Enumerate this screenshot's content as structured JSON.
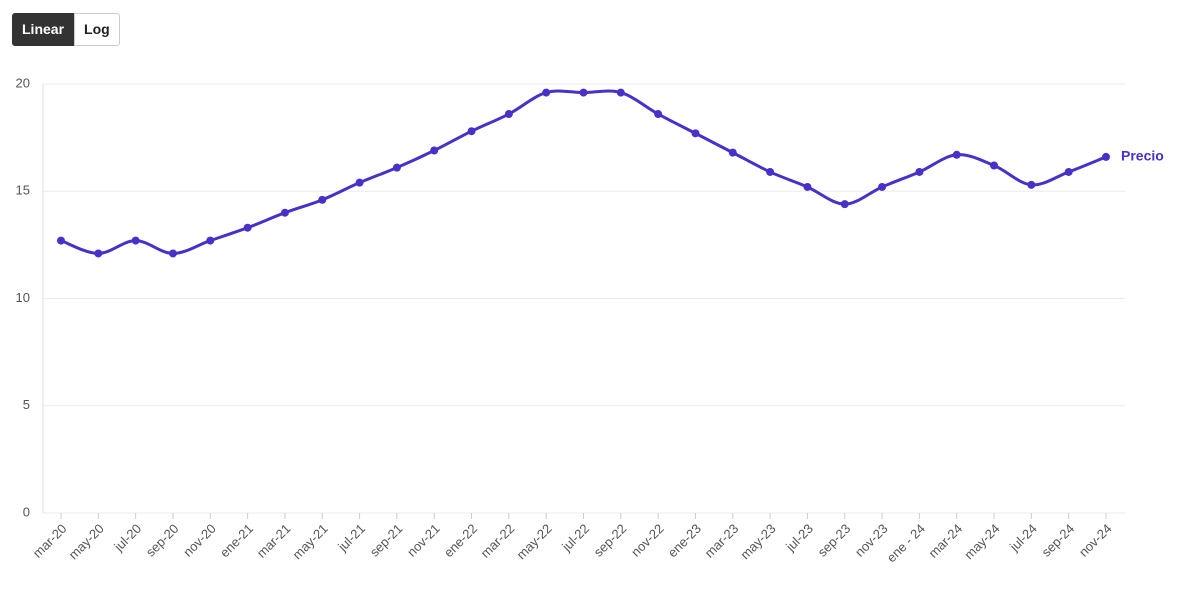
{
  "controls": {
    "buttons": [
      "Linear",
      "Log"
    ]
  },
  "chart_data": {
    "type": "line",
    "categories": [
      "mar-20",
      "may-20",
      "jul-20",
      "sep-20",
      "nov-20",
      "ene-21",
      "mar-21",
      "may-21",
      "jul-21",
      "sep-21",
      "nov-21",
      "ene-22",
      "mar-22",
      "may-22",
      "jul-22",
      "sep-22",
      "nov-22",
      "ene-23",
      "mar-23",
      "may-23",
      "jul-23",
      "sep-23",
      "nov-23",
      "ene - 24",
      "mar-24",
      "may-24",
      "jul-24",
      "sep-24",
      "nov-24"
    ],
    "series": [
      {
        "name": "Precio",
        "color": "#4a2fc8",
        "values": [
          12.7,
          12.1,
          12.7,
          12.1,
          12.7,
          13.3,
          14.0,
          14.6,
          15.4,
          16.1,
          16.9,
          17.8,
          18.6,
          19.6,
          19.6,
          19.6,
          18.6,
          17.7,
          16.8,
          15.9,
          15.2,
          14.4,
          15.2,
          15.9,
          16.7,
          16.2,
          15.3,
          15.9,
          16.6
        ]
      }
    ],
    "ylim": [
      0,
      20
    ],
    "yticks": [
      0,
      5,
      10,
      15,
      20
    ],
    "grid": true
  }
}
